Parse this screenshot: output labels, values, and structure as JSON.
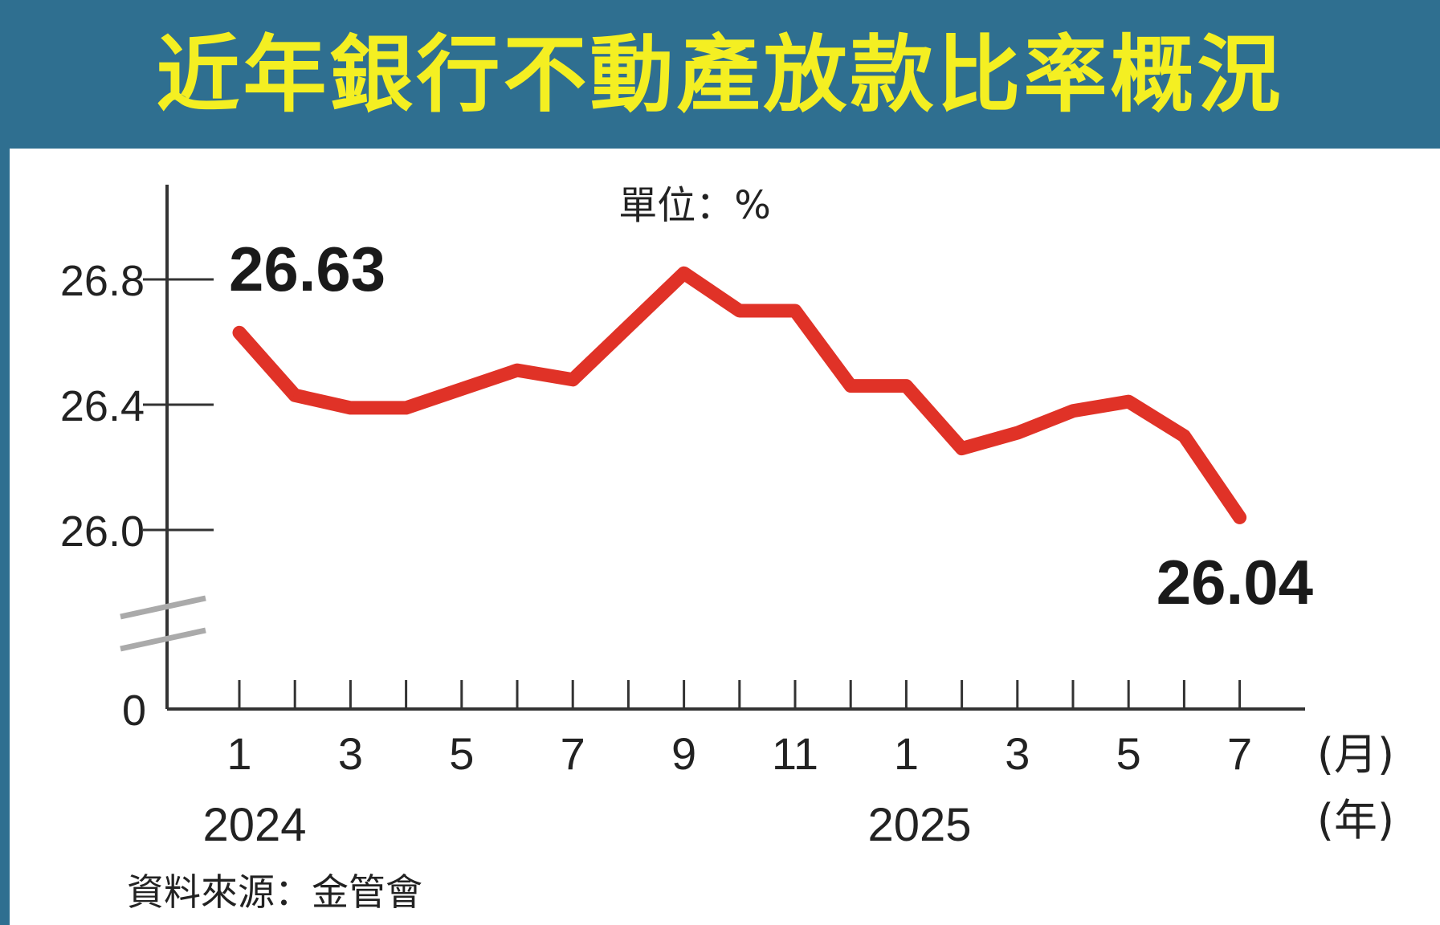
{
  "title": "近年銀行不動產放款比率概況",
  "unit_label": "單位：%",
  "source": "資料來源：金管會",
  "colors": {
    "line": "#e03227",
    "header_bg": "#2f6f90",
    "title": "#f4ef22",
    "axis": "#333333"
  },
  "chart_data": {
    "type": "line",
    "title": "近年銀行不動產放款比率概況",
    "unit": "%",
    "x": [
      "2024-01",
      "2024-02",
      "2024-03",
      "2024-04",
      "2024-05",
      "2024-06",
      "2024-07",
      "2024-08",
      "2024-09",
      "2024-10",
      "2024-11",
      "2024-12",
      "2025-01",
      "2025-02",
      "2025-03",
      "2025-04",
      "2025-05",
      "2025-06",
      "2025-07"
    ],
    "x_tick_labels": [
      "1",
      "3",
      "5",
      "7",
      "9",
      "11",
      "1",
      "3",
      "5",
      "7"
    ],
    "x_tick_label_indices": [
      0,
      2,
      4,
      6,
      8,
      10,
      12,
      14,
      16,
      18
    ],
    "year_labels": [
      {
        "label": "2024",
        "index": 0
      },
      {
        "label": "2025",
        "index": 13
      }
    ],
    "x_unit_month": "(月)",
    "x_unit_year": "(年)",
    "series": [
      {
        "values": [
          26.63,
          26.43,
          26.39,
          26.39,
          26.45,
          26.51,
          26.48,
          26.65,
          26.82,
          26.7,
          26.7,
          26.46,
          26.46,
          26.26,
          26.31,
          26.38,
          26.41,
          26.3,
          26.04
        ]
      }
    ],
    "y_ticks": [
      0,
      26.0,
      26.4,
      26.8
    ],
    "y_tick_labels": [
      "0",
      "26.0",
      "26.4",
      "26.8"
    ],
    "ylim_break": [
      0,
      26.0
    ],
    "ylim": [
      25.8,
      27.1
    ],
    "annotations": [
      {
        "text": "26.63",
        "index": 0
      },
      {
        "text": "26.04",
        "index": 18
      }
    ],
    "grid": false
  }
}
